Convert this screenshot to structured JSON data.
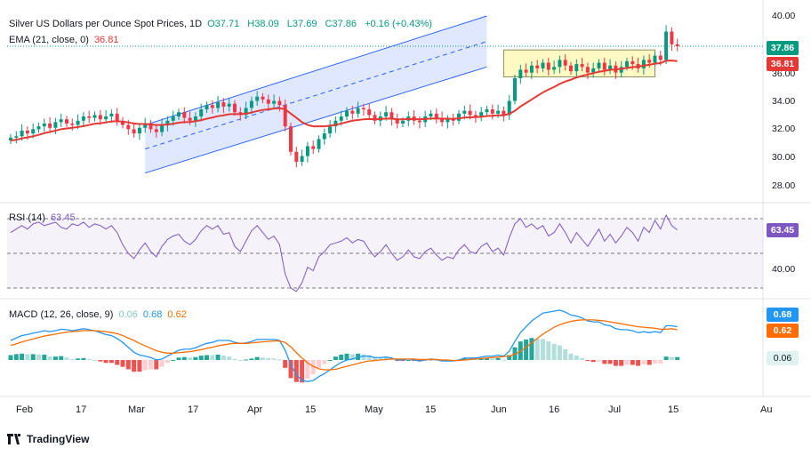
{
  "chart_data": {
    "type": "candlestick",
    "price_panel": {
      "title": "Silver US Dollars per Ounce Spot Prices, 1D",
      "ohlc": {
        "O": "37.71",
        "H": "38.09",
        "L": "37.69",
        "C": "37.86",
        "change": "+0.16 (+0.43%)"
      },
      "ema_label": "EMA (21, close, 0)",
      "ema_value": "36.81",
      "last_price": "37.86",
      "ylim": [
        27,
        40.2
      ],
      "yticks": [
        "40.00",
        "38.00",
        "36.00",
        "34.00",
        "32.00",
        "30.00",
        "28.00"
      ],
      "closes": [
        31.4,
        31.5,
        31.9,
        31.7,
        32.0,
        32.2,
        32.4,
        32.1,
        32.5,
        32.7,
        32.4,
        32.3,
        32.6,
        32.9,
        32.8,
        33.0,
        32.7,
        32.9,
        33.1,
        32.6,
        32.3,
        32.0,
        31.7,
        32.1,
        32.4,
        32.0,
        31.8,
        32.3,
        32.6,
        32.9,
        33.2,
        32.8,
        32.6,
        32.9,
        33.4,
        33.7,
        33.5,
        33.9,
        33.6,
        33.8,
        33.2,
        33.0,
        33.5,
        34.0,
        34.3,
        34.1,
        33.8,
        34.0,
        33.7,
        32.2,
        30.4,
        29.7,
        30.1,
        30.8,
        30.6,
        31.3,
        31.7,
        32.2,
        32.6,
        32.9,
        33.3,
        33.1,
        33.5,
        33.4,
        33.0,
        32.6,
        32.9,
        33.2,
        32.7,
        32.4,
        32.6,
        32.9,
        32.6,
        32.5,
        32.9,
        33.1,
        32.8,
        32.5,
        32.7,
        32.6,
        33.1,
        33.3,
        33.0,
        32.9,
        33.2,
        33.4,
        33.1,
        33.3,
        33.0,
        34.0,
        35.6,
        36.2,
        36.0,
        36.5,
        36.3,
        36.7,
        36.2,
        36.4,
        36.9,
        36.5,
        36.1,
        36.6,
        36.4,
        36.0,
        36.3,
        36.7,
        36.2,
        36.5,
        36.0,
        36.4,
        36.8,
        36.6,
        36.3,
        36.9,
        36.7,
        37.2,
        36.9,
        38.9,
        38.0,
        37.86
      ],
      "ema21": [
        31.2,
        31.25,
        31.35,
        31.42,
        31.5,
        31.6,
        31.72,
        31.8,
        31.9,
        32.0,
        32.05,
        32.1,
        32.15,
        32.22,
        32.3,
        32.38,
        32.42,
        32.48,
        32.55,
        32.56,
        32.53,
        32.48,
        32.4,
        32.37,
        32.37,
        32.34,
        32.29,
        32.3,
        32.33,
        32.38,
        32.46,
        32.5,
        32.51,
        32.56,
        32.64,
        32.74,
        32.82,
        32.92,
        32.98,
        33.06,
        33.07,
        33.06,
        33.1,
        33.18,
        33.28,
        33.36,
        33.4,
        33.46,
        33.49,
        33.4,
        33.1,
        32.8,
        32.5,
        32.3,
        32.2,
        32.2,
        32.2,
        32.25,
        32.3,
        32.4,
        32.5,
        32.6,
        32.65,
        32.7,
        32.72,
        32.7,
        32.72,
        32.75,
        32.74,
        32.7,
        32.7,
        32.72,
        32.71,
        32.7,
        32.72,
        32.75,
        32.76,
        32.74,
        32.74,
        32.73,
        32.77,
        32.82,
        32.84,
        32.85,
        32.88,
        32.93,
        32.95,
        32.98,
        32.98,
        33.08,
        33.3,
        33.6,
        33.85,
        34.1,
        34.35,
        34.6,
        34.8,
        34.98,
        35.2,
        35.37,
        35.5,
        35.65,
        35.77,
        35.86,
        35.96,
        36.06,
        36.12,
        36.2,
        36.22,
        36.26,
        36.33,
        36.39,
        36.42,
        36.5,
        36.55,
        36.63,
        36.67,
        36.84,
        36.85,
        36.81
      ],
      "channel": {
        "upper": [
          [
            24,
            32.3
          ],
          [
            85,
            40.0
          ]
        ],
        "lower": [
          [
            24,
            28.9
          ],
          [
            85,
            36.4
          ]
        ],
        "mid": [
          [
            24,
            30.6
          ],
          [
            85,
            38.2
          ]
        ]
      },
      "box": {
        "x": [
          88,
          115
        ],
        "y": [
          35.7,
          37.6
        ]
      }
    },
    "rsi_panel": {
      "label": "RSI (14)",
      "value": "63.45",
      "ytick": "40.00",
      "values": [
        62,
        64,
        66,
        64,
        67,
        68,
        66,
        67,
        68,
        65,
        64,
        67,
        66,
        68,
        65,
        67,
        66,
        64,
        66,
        62,
        55,
        50,
        47,
        52,
        56,
        51,
        48,
        54,
        58,
        60,
        61,
        57,
        55,
        58,
        63,
        66,
        64,
        66,
        61,
        62,
        54,
        51,
        57,
        63,
        66,
        62,
        58,
        60,
        55,
        38,
        30,
        28,
        33,
        42,
        40,
        48,
        51,
        55,
        56,
        57,
        59,
        56,
        58,
        57,
        52,
        48,
        51,
        55,
        50,
        46,
        48,
        52,
        48,
        47,
        51,
        53,
        49,
        46,
        48,
        47,
        52,
        55,
        51,
        50,
        54,
        56,
        51,
        53,
        49,
        59,
        67,
        70,
        65,
        67,
        64,
        66,
        60,
        62,
        67,
        62,
        56,
        62,
        58,
        54,
        59,
        64,
        57,
        61,
        56,
        60,
        65,
        62,
        57,
        65,
        62,
        69,
        64,
        72,
        66,
        63.45
      ]
    },
    "macd_panel": {
      "label": "MACD (12, 26, close, 9)",
      "hist_value": "0.06",
      "macd_value": "0.68",
      "signal_value": "0.62",
      "macd": [
        0.4,
        0.45,
        0.5,
        0.52,
        0.55,
        0.57,
        0.6,
        0.58,
        0.6,
        0.63,
        0.62,
        0.6,
        0.62,
        0.64,
        0.62,
        0.6,
        0.56,
        0.52,
        0.5,
        0.44,
        0.36,
        0.26,
        0.16,
        0.1,
        0.08,
        0.05,
        0.0,
        0.02,
        0.08,
        0.14,
        0.2,
        0.22,
        0.22,
        0.25,
        0.3,
        0.34,
        0.36,
        0.4,
        0.4,
        0.4,
        0.36,
        0.34,
        0.35,
        0.38,
        0.42,
        0.42,
        0.42,
        0.42,
        0.4,
        0.2,
        -0.1,
        -0.3,
        -0.42,
        -0.44,
        -0.42,
        -0.34,
        -0.28,
        -0.2,
        -0.12,
        -0.05,
        0.0,
        0.02,
        0.06,
        0.08,
        0.08,
        0.05,
        0.05,
        0.06,
        0.04,
        0.0,
        0.0,
        0.02,
        0.0,
        -0.02,
        0.0,
        0.02,
        0.01,
        -0.02,
        -0.02,
        -0.02,
        0.0,
        0.04,
        0.04,
        0.04,
        0.06,
        0.08,
        0.08,
        0.1,
        0.08,
        0.18,
        0.38,
        0.56,
        0.68,
        0.8,
        0.88,
        0.96,
        0.98,
        1.0,
        1.02,
        0.98,
        0.92,
        0.9,
        0.86,
        0.8,
        0.78,
        0.78,
        0.72,
        0.7,
        0.64,
        0.62,
        0.62,
        0.6,
        0.56,
        0.58,
        0.56,
        0.58,
        0.56,
        0.7,
        0.7,
        0.68
      ],
      "signal": [
        0.3,
        0.33,
        0.37,
        0.4,
        0.43,
        0.46,
        0.49,
        0.51,
        0.53,
        0.55,
        0.57,
        0.58,
        0.59,
        0.6,
        0.6,
        0.6,
        0.59,
        0.58,
        0.56,
        0.54,
        0.5,
        0.45,
        0.4,
        0.34,
        0.29,
        0.24,
        0.19,
        0.16,
        0.14,
        0.14,
        0.15,
        0.16,
        0.17,
        0.19,
        0.21,
        0.24,
        0.26,
        0.29,
        0.31,
        0.33,
        0.34,
        0.34,
        0.34,
        0.35,
        0.36,
        0.37,
        0.38,
        0.39,
        0.39,
        0.36,
        0.27,
        0.15,
        0.04,
        -0.06,
        -0.13,
        -0.18,
        -0.2,
        -0.2,
        -0.19,
        -0.16,
        -0.13,
        -0.1,
        -0.07,
        -0.04,
        -0.02,
        -0.01,
        0.0,
        0.01,
        0.02,
        0.02,
        0.02,
        0.02,
        0.02,
        0.01,
        0.01,
        0.01,
        0.01,
        0.0,
        0.0,
        -0.01,
        -0.01,
        0.0,
        0.01,
        0.02,
        0.03,
        0.04,
        0.05,
        0.06,
        0.07,
        0.08,
        0.12,
        0.18,
        0.26,
        0.35,
        0.44,
        0.53,
        0.6,
        0.67,
        0.72,
        0.76,
        0.79,
        0.81,
        0.82,
        0.82,
        0.82,
        0.81,
        0.8,
        0.78,
        0.76,
        0.74,
        0.72,
        0.7,
        0.68,
        0.67,
        0.66,
        0.65,
        0.63,
        0.63,
        0.64,
        0.62
      ]
    },
    "x_tick_labels": [
      "Feb",
      "17",
      "Mar",
      "17",
      "Apr",
      "15",
      "May",
      "15",
      "Jun",
      "16",
      "Jul",
      "15",
      "Au"
    ],
    "colors": {
      "up": "#089981",
      "down": "#f23645",
      "ema": "#e53935",
      "channel": "#2962ff",
      "rsi": "#7e57c2",
      "macd": "#2196f3",
      "signal": "#ff6d00",
      "hist_pos": "#26a69a",
      "hist_neg": "#ef5350",
      "box": "#fff59d"
    }
  },
  "footer": {
    "brand": "TradingView"
  }
}
